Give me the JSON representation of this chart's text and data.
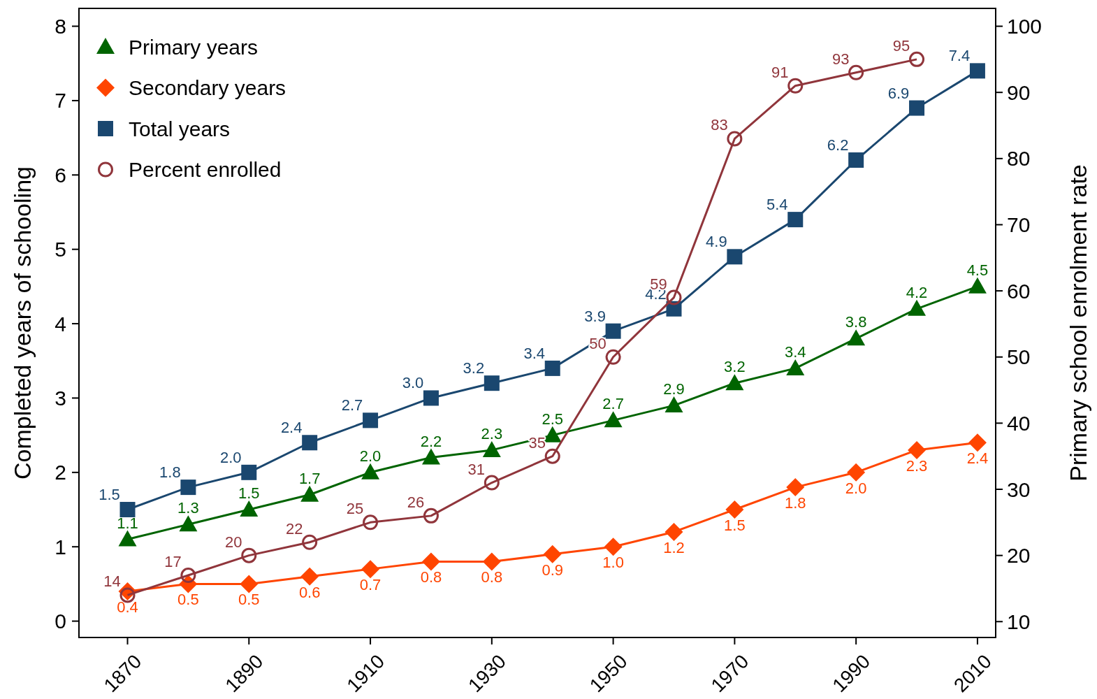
{
  "chart_data": {
    "type": "line",
    "ylabel": "Completed years of schooling",
    "y2label": "Primary school enrolment rate",
    "x": [
      1870,
      1880,
      1890,
      1900,
      1910,
      1920,
      1930,
      1940,
      1950,
      1960,
      1970,
      1980,
      1990,
      2000,
      2010
    ],
    "xlim": [
      1862,
      2013
    ],
    "xticks": [
      1870,
      1890,
      1910,
      1930,
      1950,
      1970,
      1990,
      2010
    ],
    "ylim": [
      -0.22,
      8.24
    ],
    "yticks": [
      0,
      1,
      2,
      3,
      4,
      5,
      6,
      7,
      8
    ],
    "y2lim": [
      7.6,
      102.7
    ],
    "y2ticks": [
      10,
      20,
      30,
      40,
      50,
      60,
      70,
      80,
      90,
      100
    ],
    "grid": false,
    "legend": "top left",
    "line_style": "solid",
    "series": [
      {
        "name": "Primary years",
        "color": "#006400",
        "marker": "triangle",
        "values": [
          1.1,
          1.3,
          1.5,
          1.7,
          2.0,
          2.2,
          2.3,
          2.5,
          2.7,
          2.9,
          3.2,
          3.4,
          3.8,
          4.2,
          4.5
        ],
        "value_labels": [
          "1.1",
          "1.3",
          "1.5",
          "1.7",
          "2.0",
          "2.2",
          "2.3",
          "2.5",
          "2.7",
          "2.9",
          "3.2",
          "3.4",
          "3.8",
          "4.2",
          "4.5"
        ]
      },
      {
        "name": "Secondary years",
        "color": "#ff4500",
        "marker": "diamond",
        "values": [
          0.4,
          0.5,
          0.5,
          0.6,
          0.7,
          0.8,
          0.8,
          0.9,
          1.0,
          1.2,
          1.5,
          1.8,
          2.0,
          2.3,
          2.4
        ],
        "value_labels": [
          "0.4",
          "0.5",
          "0.5",
          "0.6",
          "0.7",
          "0.8",
          "0.8",
          "0.9",
          "1.0",
          "1.2",
          "1.5",
          "1.8",
          "2.0",
          "2.3",
          "2.4"
        ]
      },
      {
        "name": "Total years",
        "color": "#1a476f",
        "marker": "square",
        "values": [
          1.5,
          1.8,
          2.0,
          2.4,
          2.7,
          3.0,
          3.2,
          3.4,
          3.9,
          4.2,
          4.9,
          5.4,
          6.2,
          6.9,
          7.4
        ],
        "value_labels": [
          "1.5",
          "1.8",
          "2.0",
          "2.4",
          "2.7",
          "3.0",
          "3.2",
          "3.4",
          "3.9",
          "4.2",
          "4.9",
          "5.4",
          "6.2",
          "6.9",
          "7.4"
        ]
      },
      {
        "name": "Percent enrolled",
        "color": "#90353b",
        "marker": "hollow_circle",
        "axis": "y2",
        "values": [
          14,
          17,
          20,
          22,
          25,
          26,
          31,
          35,
          50,
          59,
          83,
          91,
          93,
          95,
          null
        ],
        "value_labels": [
          "14",
          "17",
          "20",
          "22",
          "25",
          "26",
          "31",
          "35",
          "50",
          "59",
          "83",
          "91",
          "93",
          "95",
          null
        ]
      }
    ]
  }
}
